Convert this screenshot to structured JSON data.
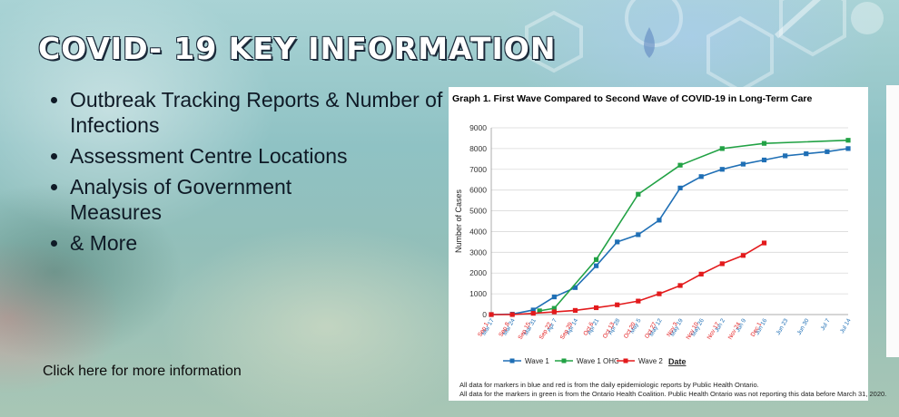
{
  "title": "COVID- 19 KEY INFORMATION",
  "bullets": [
    "Outbreak Tracking Reports & Number of Infections",
    "Assessment Centre Locations",
    "Analysis of Government Measures",
    "& More"
  ],
  "link_text": "Click here for more information",
  "chart_data": {
    "type": "line",
    "title": "Graph 1. First Wave Compared to Second Wave of COVID-19 in Long-Term Care",
    "ylabel": "Number of Cases",
    "xlabel": "Date",
    "ylim": [
      0,
      9000
    ],
    "yticks": [
      0,
      1000,
      2000,
      3000,
      4000,
      5000,
      6000,
      7000,
      8000,
      9000
    ],
    "grid": true,
    "legend": "bottom",
    "blue_ticks": [
      "Mar 17",
      "Mar 24",
      "Mar 31",
      "Apr 7",
      "Apr 14",
      "Apr 21",
      "Apr 28",
      "May 5",
      "May 12",
      "May 19",
      "May 26",
      "Jun 2",
      "Jun 9",
      "Jun 16",
      "Jun 23",
      "Jun 30",
      "Jul 7",
      "Jul 14"
    ],
    "red_ticks": [
      "Sep 1",
      "Sep 8",
      "Sep 15",
      "Sep 22",
      "Sep 29",
      "Oct 6",
      "Oct 13",
      "Oct 20",
      "Oct 27",
      "Nov 3",
      "Nov 10",
      "Nov 17",
      "Nov 24",
      "Dec 1"
    ],
    "series": [
      {
        "name": "Wave 1",
        "color": "#1f6fb5",
        "x": [
          0,
          1,
          2,
          3,
          4,
          5,
          6,
          7,
          8,
          9,
          10,
          11,
          12,
          13,
          14,
          15,
          16,
          17
        ],
        "values": [
          0,
          20,
          220,
          850,
          1300,
          2350,
          3500,
          3850,
          4550,
          6100,
          6650,
          7000,
          7250,
          7450,
          7650,
          7750,
          7850,
          8000
        ]
      },
      {
        "name": "Wave 1 OHC",
        "color": "#22a245",
        "x": [
          2.3,
          3,
          5,
          7,
          9,
          11,
          13,
          17
        ],
        "values": [
          180,
          300,
          2650,
          5800,
          7200,
          8000,
          8250,
          8400
        ]
      },
      {
        "name": "Wave 2",
        "color": "#e31a1c",
        "x": [
          0,
          1,
          2,
          3,
          4,
          5,
          6,
          7,
          8,
          9,
          10,
          11,
          12,
          13
        ],
        "values": [
          0,
          0,
          60,
          130,
          200,
          330,
          470,
          650,
          1000,
          1400,
          1950,
          2450,
          2850,
          3450
        ]
      }
    ],
    "notes": [
      "All data for markers in blue and red is from the daily epidemiologic reports by Public Health Ontario.",
      "All data for the markers in green is from the Ontario Health Coalition. Public Health Ontario was not reporting this data before March 31, 2020."
    ]
  }
}
